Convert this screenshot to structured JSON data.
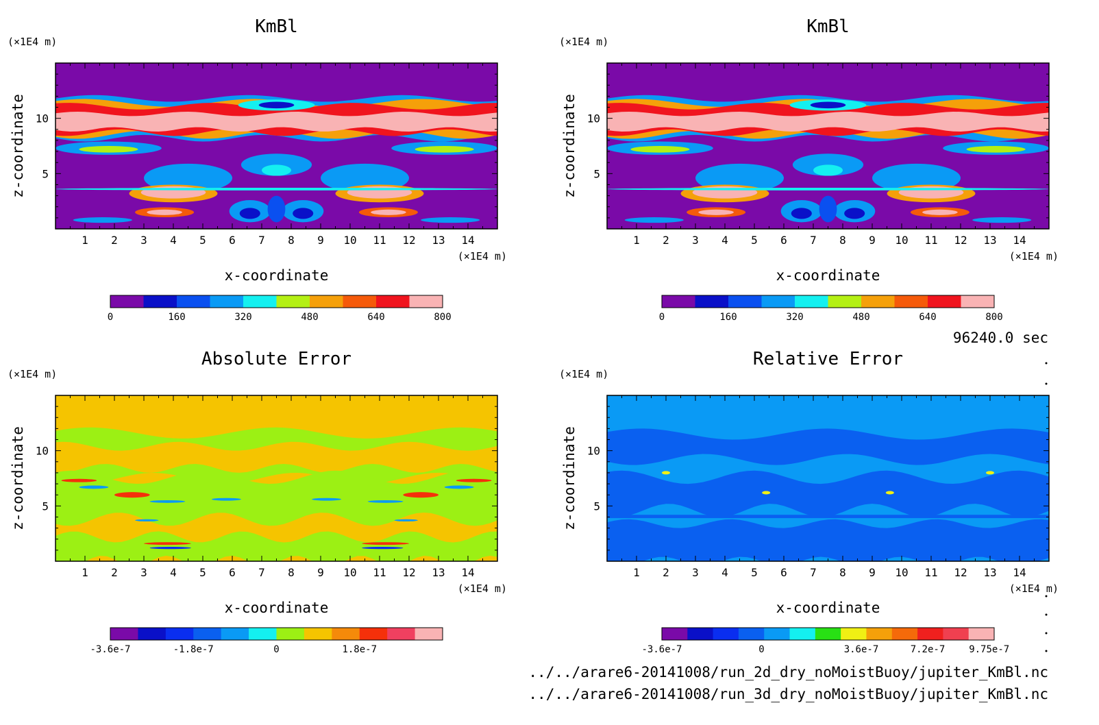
{
  "footer": {
    "time": "96240.0 sec",
    "file1": "../../arare6-20141008/run_2d_dry_noMoistBuoy/jupiter_KmBl.nc",
    "file2": "../../arare6-20141008/run_3d_dry_noMoistBuoy/jupiter_KmBl.nc"
  },
  "chart_data": [
    {
      "type": "heatmap",
      "title": "KmBl",
      "xlabel": "x-coordinate",
      "ylabel": "z-coordinate",
      "x_unit": "(×1E4 m)",
      "y_unit": "(×1E4 m)",
      "xlim": [
        0,
        15
      ],
      "ylim": [
        0,
        15
      ],
      "x_ticks": [
        "1",
        "2",
        "3",
        "4",
        "5",
        "6",
        "7",
        "8",
        "9",
        "10",
        "11",
        "12",
        "13",
        "14"
      ],
      "y_ticks": [
        "5",
        "10"
      ],
      "background": "#7a0aa8",
      "colorbar": {
        "colors": [
          "#7a0aa8",
          "#0a10c8",
          "#0a50f0",
          "#0a9af5",
          "#14f0f0",
          "#b4f014",
          "#f5a00a",
          "#f55a0a",
          "#f0141e",
          "#f9b3b4"
        ],
        "labels": [
          "0",
          "160",
          "320",
          "480",
          "640",
          "800"
        ],
        "range": [
          0,
          800
        ]
      },
      "regions": [
        {
          "label": "upper band",
          "x": [
            0,
            15
          ],
          "z": [
            8.5,
            11.5
          ],
          "value": 700
        },
        {
          "label": "upper core",
          "x": [
            0.5,
            14.5
          ],
          "z": [
            9,
            10.5
          ],
          "value": 800
        },
        {
          "label": "left lower cell",
          "x": [
            2.5,
            5
          ],
          "z": [
            2.5,
            4
          ],
          "value": 800
        },
        {
          "label": "right lower cell",
          "x": [
            10,
            12.5
          ],
          "z": [
            2.5,
            4
          ],
          "value": 800
        },
        {
          "label": "left bottom cell",
          "x": [
            3,
            4.5
          ],
          "z": [
            1,
            2
          ],
          "value": 800
        },
        {
          "label": "right bottom cell",
          "x": [
            10.5,
            12
          ],
          "z": [
            1,
            2
          ],
          "value": 800
        }
      ]
    },
    {
      "type": "heatmap",
      "title": "KmBl",
      "xlabel": "x-coordinate",
      "ylabel": "z-coordinate",
      "x_unit": "(×1E4 m)",
      "y_unit": "(×1E4 m)",
      "xlim": [
        0,
        15
      ],
      "ylim": [
        0,
        15
      ],
      "x_ticks": [
        "1",
        "2",
        "3",
        "4",
        "5",
        "6",
        "7",
        "8",
        "9",
        "10",
        "11",
        "12",
        "13",
        "14"
      ],
      "y_ticks": [
        "5",
        "10"
      ],
      "background": "#7a0aa8",
      "colorbar": {
        "colors": [
          "#7a0aa8",
          "#0a10c8",
          "#0a50f0",
          "#0a9af5",
          "#14f0f0",
          "#b4f014",
          "#f5a00a",
          "#f55a0a",
          "#f0141e",
          "#f9b3b4"
        ],
        "labels": [
          "0",
          "160",
          "320",
          "480",
          "640",
          "800"
        ],
        "range": [
          0,
          800
        ]
      },
      "regions": [
        {
          "label": "upper band",
          "x": [
            0,
            15
          ],
          "z": [
            8.5,
            11.5
          ],
          "value": 700
        },
        {
          "label": "upper core",
          "x": [
            0.5,
            14.5
          ],
          "z": [
            9,
            10.5
          ],
          "value": 800
        },
        {
          "label": "left lower cell",
          "x": [
            2.5,
            5
          ],
          "z": [
            2.5,
            4
          ],
          "value": 800
        },
        {
          "label": "right lower cell",
          "x": [
            10,
            12.5
          ],
          "z": [
            2.5,
            4
          ],
          "value": 800
        },
        {
          "label": "left bottom cell",
          "x": [
            3,
            4.5
          ],
          "z": [
            1,
            2
          ],
          "value": 800
        },
        {
          "label": "right bottom cell",
          "x": [
            10.5,
            12
          ],
          "z": [
            1,
            2
          ],
          "value": 800
        }
      ]
    },
    {
      "type": "heatmap",
      "title": "Absolute Error",
      "xlabel": "x-coordinate",
      "ylabel": "z-coordinate",
      "x_unit": "(×1E4 m)",
      "y_unit": "(×1E4 m)",
      "xlim": [
        0,
        15
      ],
      "ylim": [
        0,
        15
      ],
      "x_ticks": [
        "1",
        "2",
        "3",
        "4",
        "5",
        "6",
        "7",
        "8",
        "9",
        "10",
        "11",
        "12",
        "13",
        "14"
      ],
      "y_ticks": [
        "5",
        "10"
      ],
      "background": "#f5c400",
      "colorbar": {
        "colors": [
          "#7a0aa8",
          "#0a10c8",
          "#0a2ef0",
          "#0a60f0",
          "#0a9af5",
          "#14f0f0",
          "#9cf014",
          "#f5c400",
          "#f58a0a",
          "#f5300a",
          "#f04060",
          "#f9b3b4"
        ],
        "labels": [
          "-3.6e-7",
          "-1.8e-7",
          "0",
          "1.8e-7"
        ],
        "range": [
          -3.6e-07,
          2.7e-07
        ]
      }
    },
    {
      "type": "heatmap",
      "title": "Relative Error",
      "xlabel": "x-coordinate",
      "ylabel": "z-coordinate",
      "x_unit": "(×1E4 m)",
      "y_unit": "(×1E4 m)",
      "xlim": [
        0,
        15
      ],
      "ylim": [
        0,
        15
      ],
      "x_ticks": [
        "1",
        "2",
        "3",
        "4",
        "5",
        "6",
        "7",
        "8",
        "9",
        "10",
        "11",
        "12",
        "13",
        "14"
      ],
      "y_ticks": [
        "5",
        "10"
      ],
      "background": "#0a9af5",
      "colorbar": {
        "colors": [
          "#7a0aa8",
          "#0a10c8",
          "#0a2ef0",
          "#0a60f0",
          "#0a9af5",
          "#14f0f0",
          "#28e014",
          "#f0f014",
          "#f5a00a",
          "#f56a0a",
          "#f0201e",
          "#f04050",
          "#f9b3b4"
        ],
        "labels": [
          "-3.6e-7",
          "0",
          "3.6e-7",
          "7.2e-7",
          "9.75e-7"
        ],
        "range": [
          -3.6e-07,
          9.75e-07
        ]
      }
    }
  ]
}
